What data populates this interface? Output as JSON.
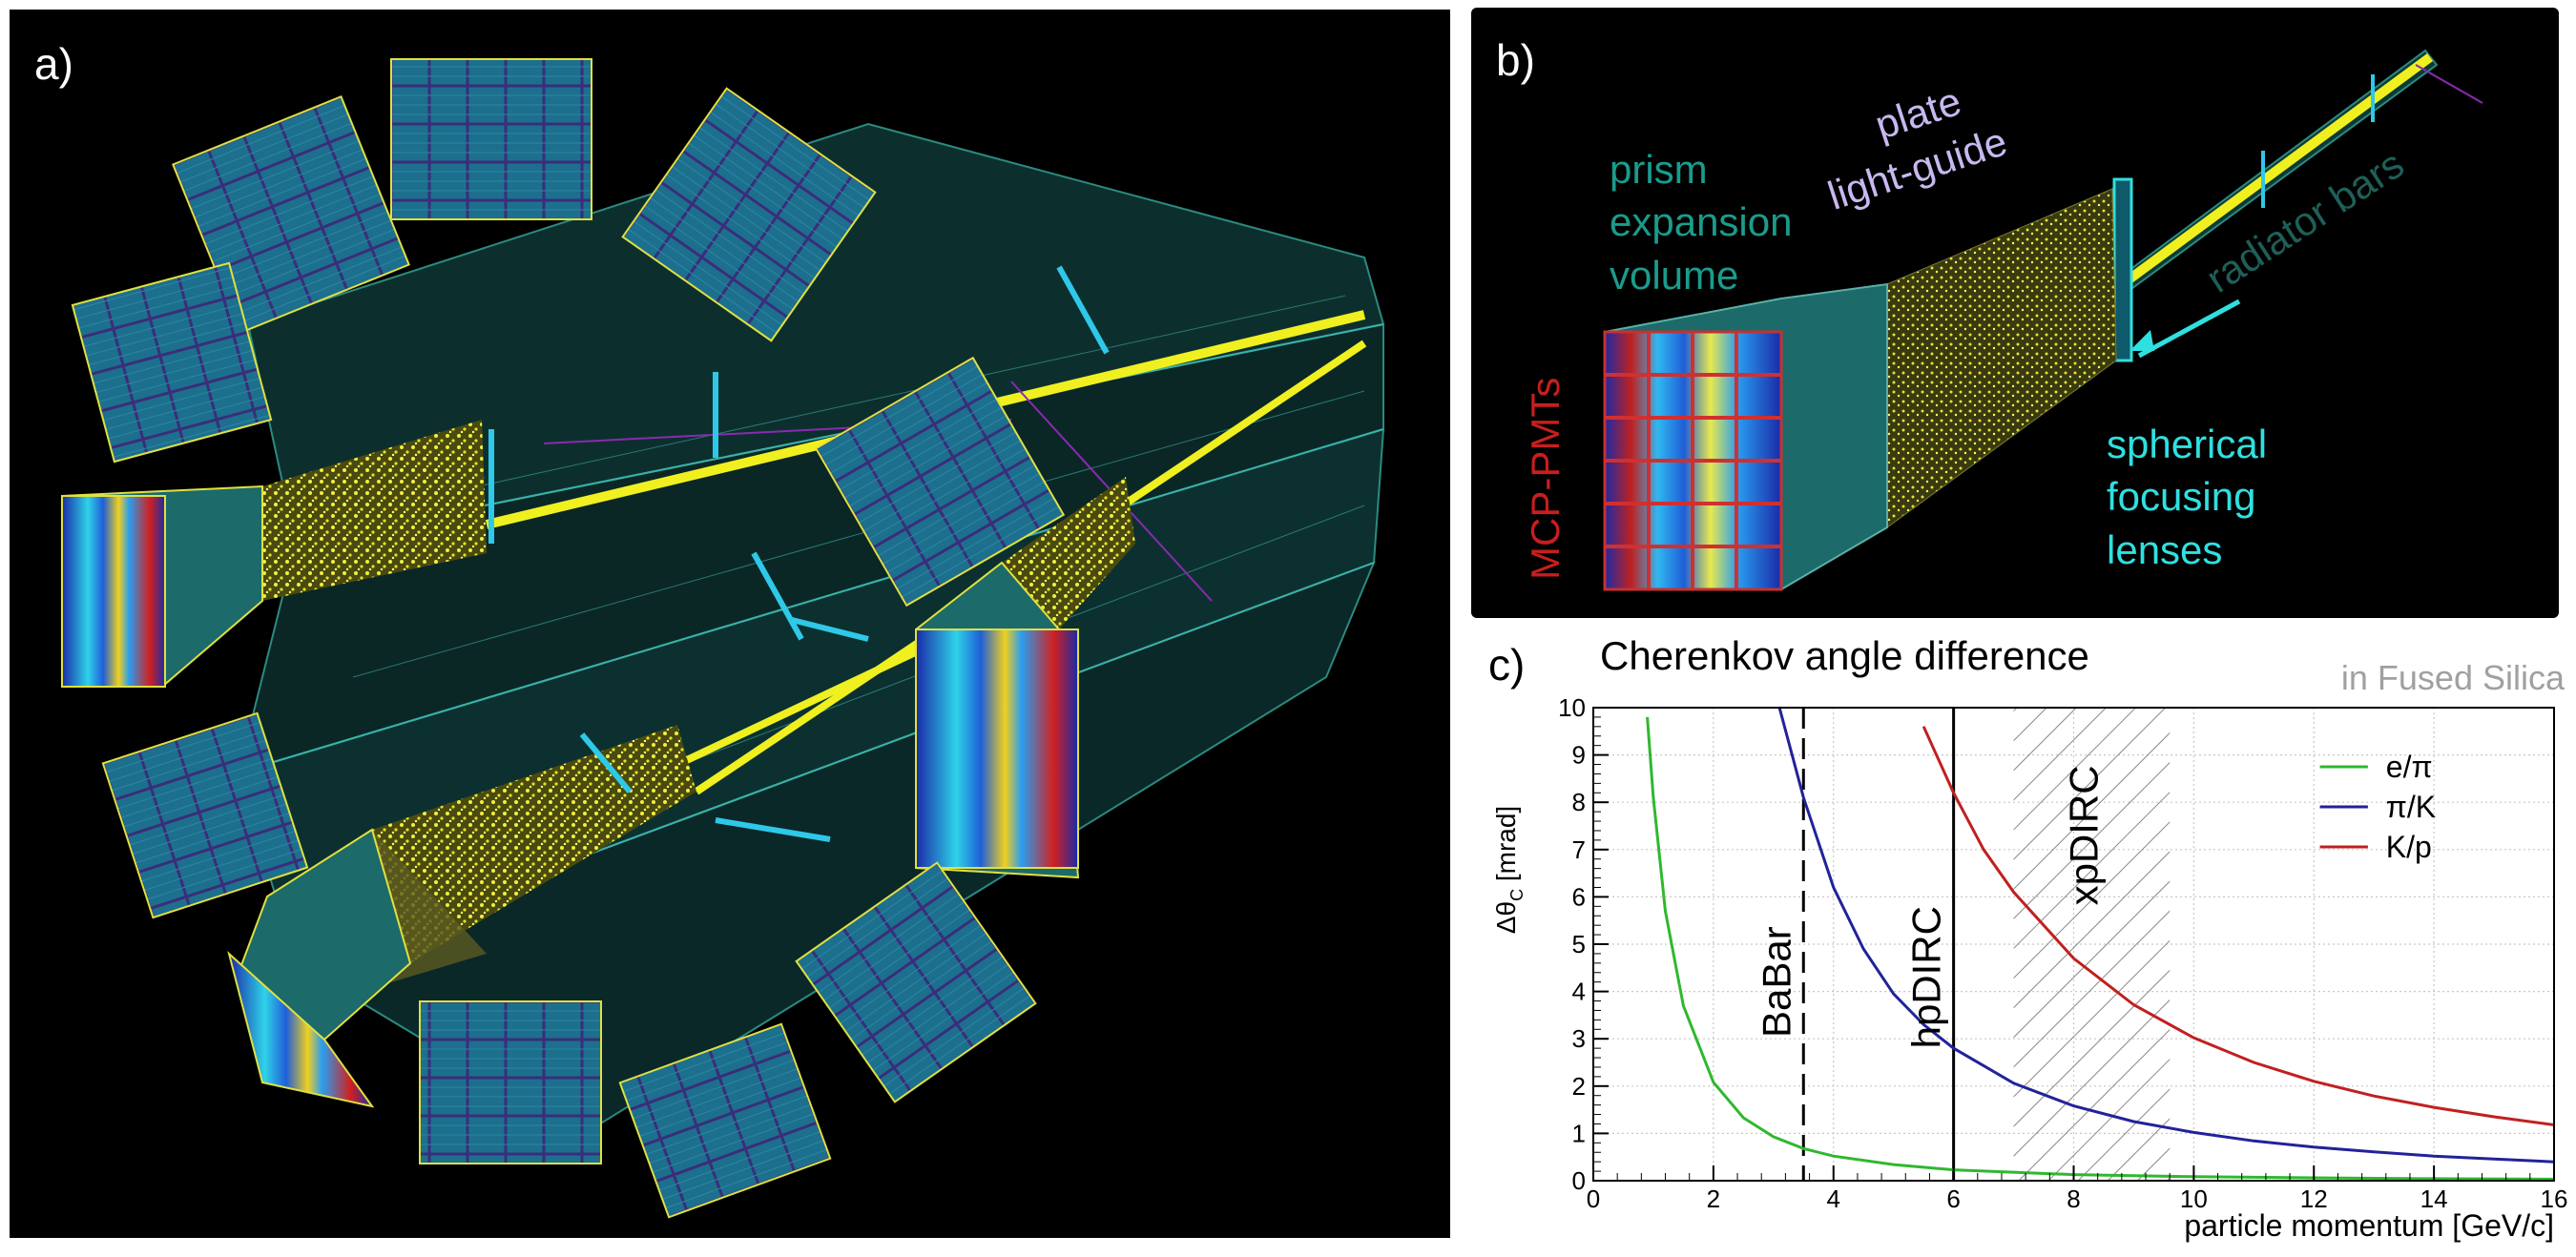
{
  "panel_a": {
    "label": "a)"
  },
  "panel_b": {
    "label": "b)",
    "prism_lines": [
      "prism",
      "expansion",
      "volume"
    ],
    "plate_lines": [
      "plate",
      "light-guide"
    ],
    "radiator": "radiator bars",
    "mcp": "MCP-PMTs",
    "lens_lines": [
      "spherical",
      "focusing",
      "lenses"
    ],
    "colors": {
      "prism": "#1a9c8c",
      "plate": "#c8b8f0",
      "radiator": "#1f5f58",
      "mcp": "#c81e1e",
      "lens": "#2fe0e0"
    }
  },
  "panel_c": {
    "label": "c)",
    "title": "Cherenkov angle difference",
    "subtitle": "in Fused Silica"
  },
  "chart_data": {
    "type": "line",
    "title": "Cherenkov angle difference",
    "subtitle": "in Fused Silica",
    "xlabel": "particle momentum [GeV/c]",
    "ylabel": "Δθ",
    "ylabel_sub": "C",
    "ylabel_unit": "[mrad]",
    "xlim": [
      0,
      16
    ],
    "ylim": [
      0,
      10
    ],
    "xticks": [
      0,
      2,
      4,
      6,
      8,
      10,
      12,
      14,
      16
    ],
    "yticks": [
      0,
      1,
      2,
      3,
      4,
      5,
      6,
      7,
      8,
      9,
      10
    ],
    "grid": true,
    "legend_position": "top-right",
    "series": [
      {
        "name": "e/π",
        "color": "#2fb82f",
        "x": [
          0.9,
          1,
          1.2,
          1.5,
          2,
          2.5,
          3,
          3.5,
          4,
          5,
          6,
          8,
          10,
          12,
          14,
          16
        ],
        "y": [
          9.8,
          8.1,
          5.7,
          3.7,
          2.08,
          1.33,
          0.93,
          0.68,
          0.52,
          0.34,
          0.23,
          0.13,
          0.085,
          0.06,
          0.043,
          0.033
        ]
      },
      {
        "name": "π/K",
        "color": "#22229a",
        "x": [
          3.1,
          3.5,
          4,
          4.5,
          5,
          5.5,
          6,
          7,
          8,
          9,
          10,
          11,
          12,
          13,
          14,
          15,
          16
        ],
        "y": [
          10,
          8.1,
          6.2,
          4.9,
          3.95,
          3.3,
          2.8,
          2.06,
          1.58,
          1.25,
          1.02,
          0.84,
          0.71,
          0.61,
          0.52,
          0.46,
          0.4
        ]
      },
      {
        "name": "K/p",
        "color": "#c02020",
        "x": [
          5.5,
          6,
          6.5,
          7,
          8,
          9,
          10,
          11,
          12,
          13,
          14,
          15,
          16
        ],
        "y": [
          9.6,
          8.2,
          7.0,
          6.1,
          4.7,
          3.72,
          3.02,
          2.5,
          2.1,
          1.79,
          1.55,
          1.35,
          1.18
        ]
      }
    ],
    "annotations": [
      {
        "text": "BaBar",
        "x": 3.5,
        "style": "dashed-vline"
      },
      {
        "text": "hpDIRC",
        "x": 6,
        "style": "solid-vline"
      },
      {
        "text": "xpDIRC",
        "x_range": [
          7,
          9.6
        ],
        "style": "hatched-band"
      }
    ]
  }
}
